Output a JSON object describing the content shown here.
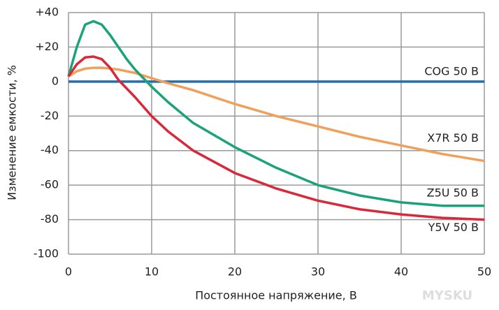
{
  "chart_data": {
    "type": "line",
    "x_label": "Постоянное напряжение, В",
    "y_label": "Изменение емкости, %",
    "x": [
      0,
      1,
      2,
      3,
      4,
      5,
      6,
      7,
      8,
      10,
      12,
      15,
      20,
      25,
      30,
      35,
      40,
      45,
      50
    ],
    "series": [
      {
        "name": "COG 50 В",
        "color": "#1f6fb4",
        "values": [
          0,
          0,
          0,
          0,
          0,
          0,
          0,
          0,
          0,
          0,
          0,
          0,
          0,
          0,
          0,
          0,
          0,
          0,
          0
        ]
      },
      {
        "name": "X7R 50 В",
        "color": "#f0a05a",
        "values": [
          3,
          6,
          7.5,
          8,
          8,
          7.5,
          7,
          6,
          5,
          2,
          -1,
          -5,
          -13,
          -20,
          -26,
          -32,
          -37,
          -42,
          -46
        ]
      },
      {
        "name": "Z5U 50 В",
        "color": "#1aa37a",
        "values": [
          3,
          20,
          33,
          35,
          33,
          27,
          20,
          13,
          7,
          -3,
          -12,
          -24,
          -38,
          -50,
          -60,
          -66,
          -70,
          -72,
          -72
        ]
      },
      {
        "name": "Y5V 50 В",
        "color": "#d9283a",
        "values": [
          3,
          10,
          14,
          14.5,
          13,
          8,
          1,
          -4,
          -9,
          -20,
          -29,
          -40,
          -53,
          -62,
          -69,
          -74,
          -77,
          -79,
          -80
        ]
      }
    ],
    "xlim": [
      0,
      50
    ],
    "xticks": [
      0,
      10,
      20,
      30,
      40,
      50
    ],
    "ylim": [
      -100,
      40
    ],
    "yticks": [
      -100,
      -80,
      -60,
      -40,
      -20,
      0,
      {
        "value": 20,
        "label": "+20"
      },
      {
        "value": 40,
        "label": "+40"
      }
    ],
    "grid": true,
    "watermark": "MYSKU"
  }
}
